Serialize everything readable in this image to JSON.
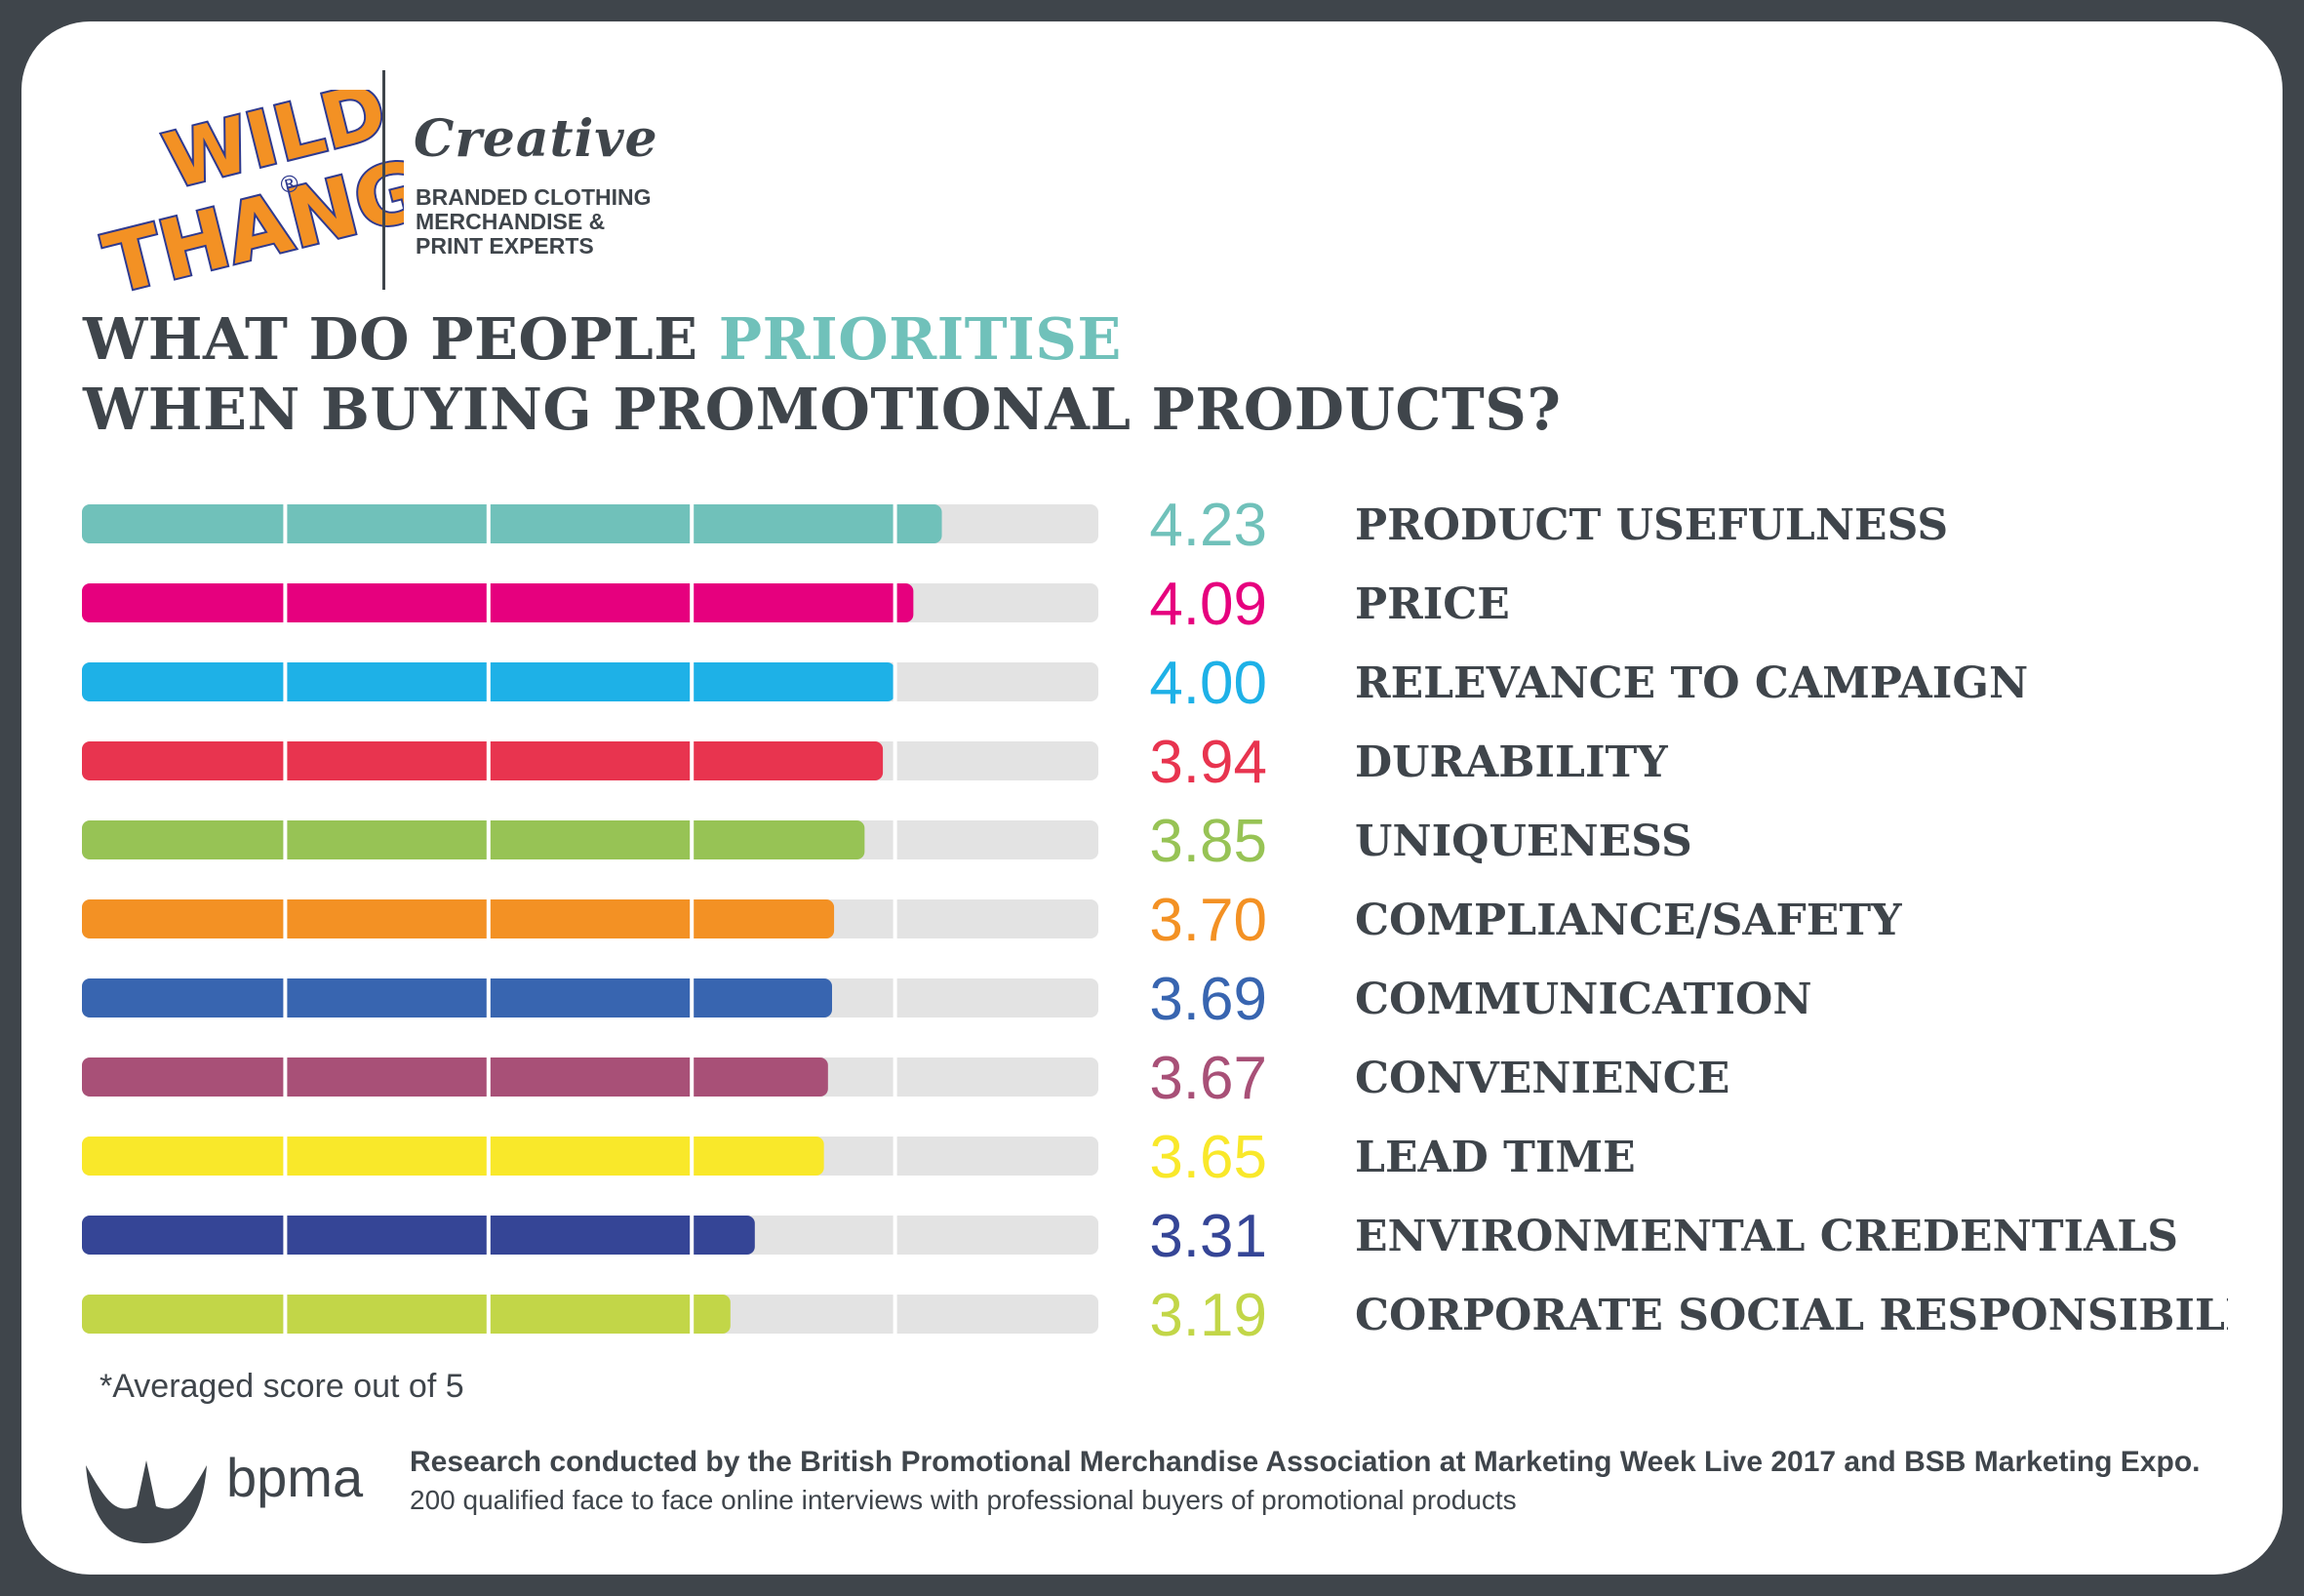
{
  "brand": {
    "logo_text_1": "WILD",
    "logo_text_2": "THANG",
    "logo_mark": "®",
    "creative": "Creative",
    "tagline": [
      "BRANDED CLOTHING",
      "MERCHANDISE &",
      "PRINT EXPERTS"
    ]
  },
  "title": {
    "line1_pre": "WHAT DO PEOPLE ",
    "line1_accent": "PRIORITISE",
    "line2": "WHEN BUYING PROMOTIONAL PRODUCTS?",
    "accent_color": "#70c1ba"
  },
  "chart_data": {
    "type": "bar",
    "orientation": "horizontal",
    "xlim": [
      0,
      5
    ],
    "categories": [
      "PRODUCT USEFULNESS",
      "PRICE",
      "RELEVANCE TO CAMPAIGN",
      "DURABILITY",
      "UNIQUENESS",
      "COMPLIANCE/SAFETY",
      "COMMUNICATION",
      "CONVENIENCE",
      "LEAD TIME",
      "ENVIRONMENTAL CREDENTIALS",
      "CORPORATE SOCIAL RESPONSIBILITY"
    ],
    "values": [
      4.23,
      4.09,
      4.0,
      3.94,
      3.85,
      3.7,
      3.69,
      3.67,
      3.65,
      3.31,
      3.19
    ],
    "value_labels": [
      "4.23",
      "4.09",
      "4.00",
      "3.94",
      "3.85",
      "3.70",
      "3.69",
      "3.67",
      "3.65",
      "3.31",
      "3.19"
    ],
    "colors": [
      "#70c1ba",
      "#e6007e",
      "#1eb1e7",
      "#e8344f",
      "#97c355",
      "#f39124",
      "#3865b0",
      "#a85077",
      "#f9e82a",
      "#354596",
      "#c2d648"
    ],
    "track_color": "#e3e3e3",
    "grid": false,
    "legend": "none"
  },
  "footnote": "*Averaged score out of 5",
  "bpma": {
    "word": "bpma"
  },
  "research": {
    "line1": "Research conducted by the British Promotional Merchandise Association at Marketing Week Live 2017 and BSB Marketing Expo.",
    "line2": "200 qualified face to face online interviews with professional buyers of promotional products"
  }
}
